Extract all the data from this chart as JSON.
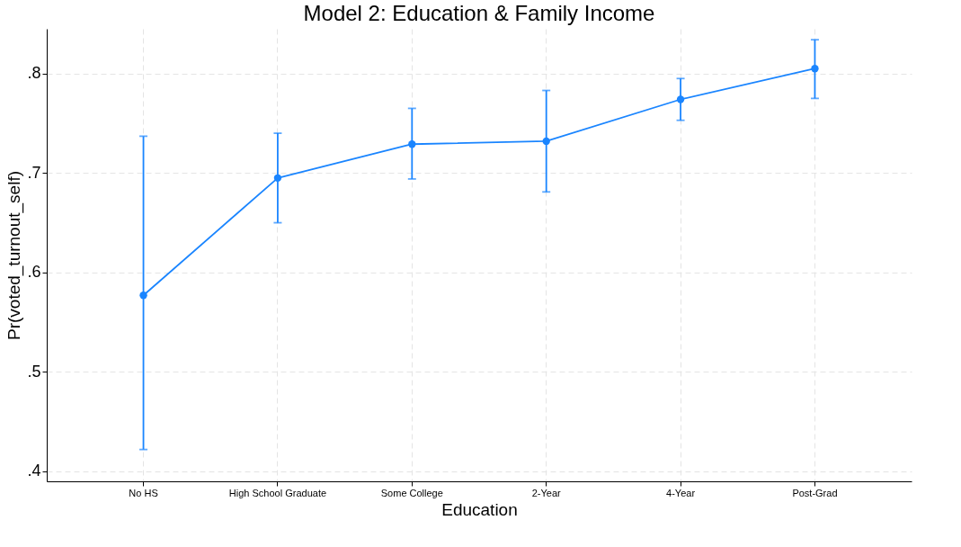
{
  "chart_data": {
    "type": "line",
    "title": "Model 2: Education & Family Income",
    "xlabel": "Education",
    "ylabel": "Pr(voted_turnout_self)",
    "categories": [
      "No HS",
      "High School Graduate",
      "Some College",
      "2-Year",
      "4-Year",
      "Post-Grad"
    ],
    "series": [
      {
        "color": "#1a85ff",
        "values": [
          0.577,
          0.695,
          0.729,
          0.732,
          0.774,
          0.805
        ],
        "errors": [
          [
            0.422,
            0.737
          ],
          [
            0.65,
            0.74
          ],
          [
            0.694,
            0.765
          ],
          [
            0.681,
            0.783
          ],
          [
            0.753,
            0.795
          ],
          [
            0.775,
            0.834
          ]
        ]
      }
    ],
    "ylim": [
      0.39,
      0.845
    ],
    "yticks": [
      {
        "value": 0.4,
        "label": ".4"
      },
      {
        "value": 0.5,
        "label": ".5"
      },
      {
        "value": 0.6,
        "label": ".6"
      },
      {
        "value": 0.7,
        "label": ".7"
      },
      {
        "value": 0.8,
        "label": ".8"
      }
    ],
    "grid": true,
    "marker": "circle",
    "line_style": "solid"
  }
}
